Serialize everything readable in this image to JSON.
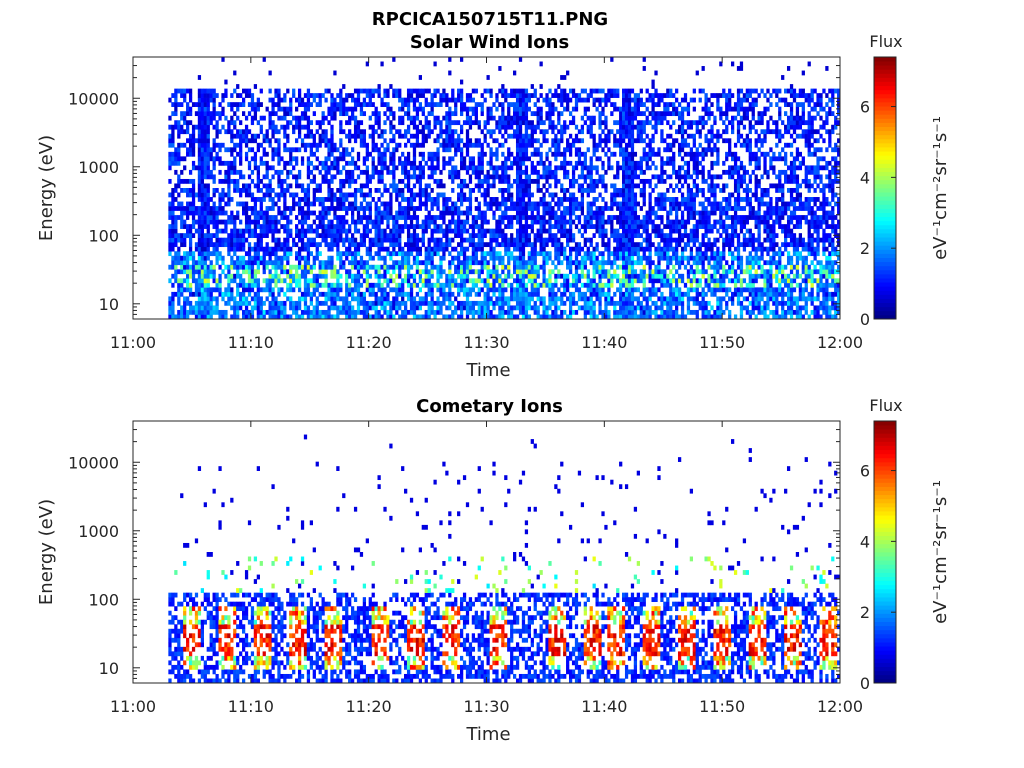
{
  "figure_title": "RPCICA150715T11.PNG",
  "colormap": [
    "#00007f",
    "#0000ff",
    "#007fff",
    "#00ffff",
    "#7fff7f",
    "#ffff00",
    "#ff7f00",
    "#ff0000",
    "#7f0000"
  ],
  "chart_data": [
    {
      "type": "heatmap",
      "title": "Solar Wind Ions",
      "xlabel": "Time",
      "ylabel": "Energy (eV)",
      "x_ticks": [
        "11:00",
        "11:10",
        "11:20",
        "11:30",
        "11:40",
        "11:50",
        "12:00"
      ],
      "x_range": [
        "11:00",
        "12:00"
      ],
      "x_data_start": "11:03",
      "y_scale": "log",
      "y_range": [
        6,
        40000
      ],
      "y_ticks": [
        10,
        100,
        1000,
        10000
      ],
      "y_tick_labels": [
        "10",
        "100",
        "1000",
        "10000"
      ],
      "colorbar": {
        "label": "Flux",
        "unit": "eV⁻¹cm⁻²sr⁻¹s⁻¹",
        "range": [
          0,
          7.4
        ],
        "ticks": [
          0,
          2,
          4,
          6
        ],
        "tick_labels": [
          "0",
          "2",
          "4",
          "6"
        ]
      },
      "features": {
        "bright_band_energy_eV": [
          18,
          40
        ],
        "bright_band_flux": 4,
        "noise_floor_flux": 1.2,
        "strong_columns_time": [
          "11:06",
          "11:33",
          "11:42"
        ]
      }
    },
    {
      "type": "heatmap",
      "title": "Cometary Ions",
      "xlabel": "Time",
      "ylabel": "Energy (eV)",
      "x_ticks": [
        "11:00",
        "11:10",
        "11:20",
        "11:30",
        "11:40",
        "11:50",
        "12:00"
      ],
      "x_range": [
        "11:00",
        "12:00"
      ],
      "x_data_start": "11:03",
      "y_scale": "log",
      "y_range": [
        6,
        40000
      ],
      "y_ticks": [
        10,
        100,
        1000,
        10000
      ],
      "y_tick_labels": [
        "10",
        "100",
        "1000",
        "10000"
      ],
      "colorbar": {
        "label": "Flux",
        "unit": "eV⁻¹cm⁻²sr⁻¹s⁻¹",
        "range": [
          0,
          7.4
        ],
        "ticks": [
          0,
          2,
          4,
          6
        ],
        "tick_labels": [
          "0",
          "2",
          "4",
          "6"
        ]
      },
      "features": {
        "peak_flux": 7,
        "peak_energy_eV": [
          15,
          45
        ],
        "burst_times": [
          "11:05",
          "11:08",
          "11:11",
          "11:14",
          "11:17",
          "11:21",
          "11:24",
          "11:27",
          "11:31",
          "11:36",
          "11:39",
          "11:41",
          "11:44",
          "11:47",
          "11:50",
          "11:53",
          "11:56",
          "11:59"
        ]
      }
    }
  ]
}
